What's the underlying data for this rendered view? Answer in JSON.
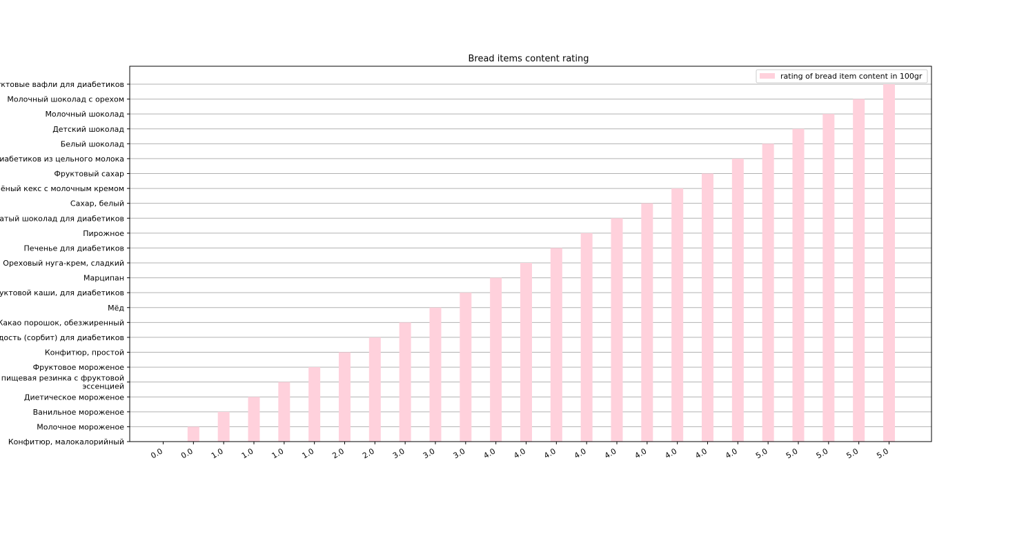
{
  "chart_data": {
    "type": "bar",
    "title": "Bread items content rating",
    "xlabel": "",
    "ylabel": "",
    "categories": [
      "Конфитюр, малокалорийный",
      "Молочное мороженое",
      "Ванильное мороженое",
      "Диетическое мороженое",
      "Жевательная пищевая резинка с фруктовой\nэссенцией",
      "Фруктовое мороженое",
      "Конфитюр, простой",
      "Сладость (сорбит) для диабетиков",
      "Какао порошок, обезжиренный",
      "Мёд",
      "Смесь для фруктовой каши, для диабетиков",
      "Марципан",
      "Ореховый нуга-крем, сладкий",
      "Печенье для диабетиков",
      "Пирожное",
      "Ноздреватый шоколад для диабетиков",
      "Сахар, белый",
      "Печёный кекс с молочным кремом",
      "Фруктовый сахар",
      "Шоколад для диабетиков из цельного молока",
      "Белый шоколад",
      "Детский шоколад",
      "Молочный шоколад",
      "Молочный шоколад с орехом",
      "Фруктовые вафли для диабетиков"
    ],
    "x_tick_labels": [
      "0.0",
      "0.0",
      "1.0",
      "1.0",
      "1.0",
      "1.0",
      "2.0",
      "2.0",
      "3.0",
      "3.0",
      "3.0",
      "4.0",
      "4.0",
      "4.0",
      "4.0",
      "4.0",
      "4.0",
      "4.0",
      "4.0",
      "4.0",
      "5.0",
      "5.0",
      "5.0",
      "5.0",
      "5.0"
    ],
    "series": [
      {
        "name": "rating of bread item content in 100gr",
        "color": "#ffd1dc",
        "values": [
          0,
          1,
          2,
          3,
          4,
          5,
          6,
          7,
          8,
          9,
          10,
          11,
          12,
          13,
          14,
          15,
          16,
          17,
          18,
          19,
          20,
          21,
          22,
          23,
          24
        ]
      }
    ],
    "legend_position": "top-right",
    "grid": "horizontal"
  }
}
